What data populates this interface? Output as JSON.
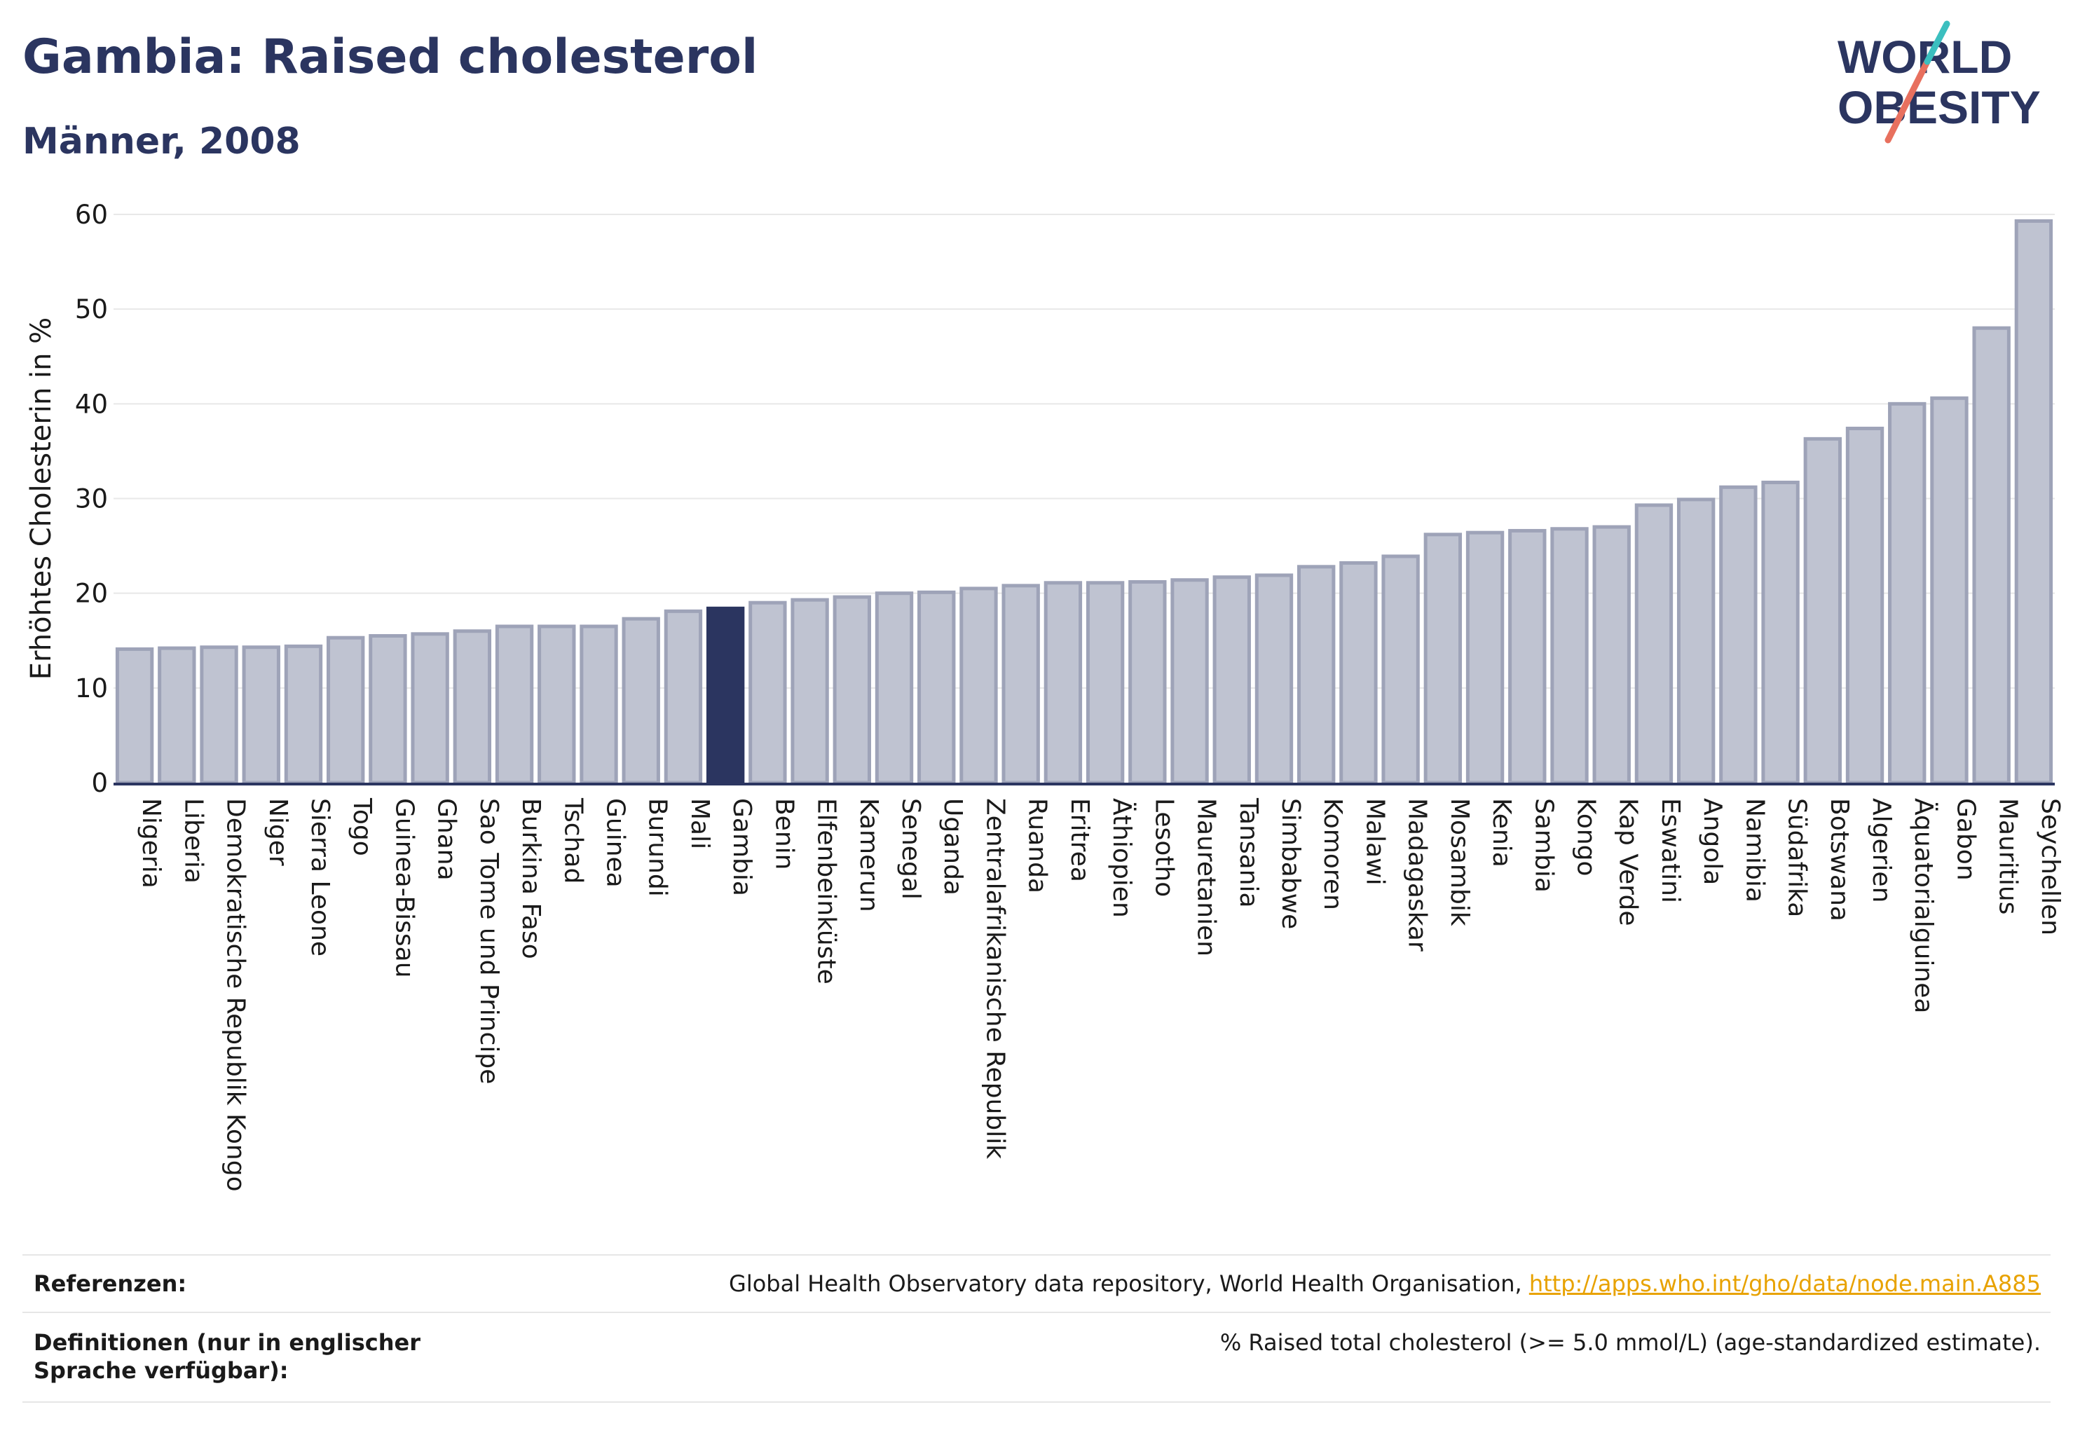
{
  "header": {
    "title": "Gambia: Raised cholesterol",
    "subtitle": "Männer, 2008",
    "logo_line1": "WORLD",
    "logo_line2": "OBESITY"
  },
  "chart_data": {
    "type": "bar",
    "ylabel": "Erhöhtes Cholesterin in %",
    "ylim": [
      0,
      60
    ],
    "yticks": [
      0,
      10,
      20,
      30,
      40,
      50,
      60
    ],
    "grid": true,
    "highlight": "Gambia",
    "colors": {
      "bar": "#bfc3d1",
      "bar_edge": "#9ea3b8",
      "highlight": "#2b3560"
    },
    "categories": [
      "Nigeria",
      "Liberia",
      "Demokratische Republik Kongo",
      "Niger",
      "Sierra Leone",
      "Togo",
      "Guinea-Bissau",
      "Ghana",
      "Sao Tome und Principe",
      "Burkina Faso",
      "Tschad",
      "Guinea",
      "Burundi",
      "Mali",
      "Gambia",
      "Benin",
      "Elfenbeinküste",
      "Kamerun",
      "Senegal",
      "Uganda",
      "Zentralafrikanische Republik",
      "Ruanda",
      "Eritrea",
      "Äthiopien",
      "Lesotho",
      "Mauretanien",
      "Tansania",
      "Simbabwe",
      "Komoren",
      "Malawi",
      "Madagaskar",
      "Mosambik",
      "Kenia",
      "Sambia",
      "Kongo",
      "Kap Verde",
      "Eswatini",
      "Angola",
      "Namibia",
      "Südafrika",
      "Botswana",
      "Algerien",
      "Äquatorialguinea",
      "Gabon",
      "Mauritius",
      "Seychellen"
    ],
    "values": [
      14.1,
      14.2,
      14.3,
      14.3,
      14.4,
      15.3,
      15.5,
      15.7,
      16.0,
      16.5,
      16.5,
      16.5,
      17.3,
      18.1,
      18.4,
      19.0,
      19.3,
      19.6,
      20.0,
      20.1,
      20.5,
      20.8,
      21.1,
      21.1,
      21.2,
      21.4,
      21.7,
      21.9,
      22.8,
      23.2,
      23.9,
      26.2,
      26.4,
      26.6,
      26.8,
      27.0,
      29.3,
      29.9,
      31.2,
      31.7,
      36.3,
      37.4,
      40.0,
      40.6,
      48.0,
      59.3
    ]
  },
  "footer": {
    "references_label": "Referenzen:",
    "references_text": "Global Health Observatory data repository, World Health Organisation, ",
    "references_link": "http://apps.who.int/gho/data/node.main.A885",
    "definitions_label": "Definitionen (nur in englischer Sprache verfügbar):",
    "definitions_text": "% Raised total cholesterol (>= 5.0 mmol/L) (age-standardized estimate)."
  }
}
